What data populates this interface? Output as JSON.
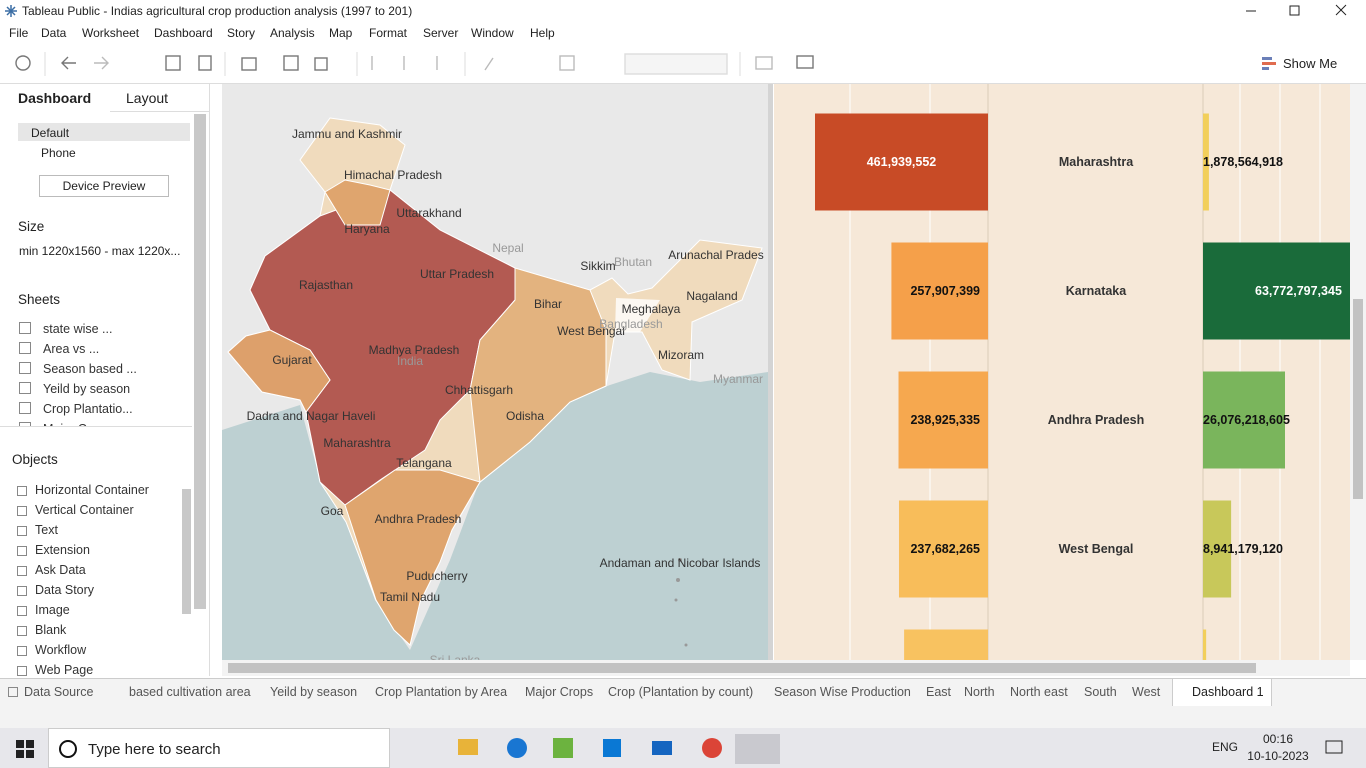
{
  "title_bar": {
    "title": "Tableau Public - Indias agricultural crop production analysis (1997 to 201)"
  },
  "menu": [
    "File",
    "Data",
    "Worksheet",
    "Dashboard",
    "Story",
    "Analysis",
    "Map",
    "Format",
    "Server",
    "Window",
    "Help"
  ],
  "toolbar": {
    "show_me": "Show Me"
  },
  "sidebar": {
    "tabs": [
      "Dashboard",
      "Layout"
    ],
    "devices": [
      "Default",
      "Phone"
    ],
    "device_preview": "Device Preview",
    "size_heading": "Size",
    "size_value": "min 1220x1560 - max 1220x...",
    "sheets_heading": "Sheets",
    "sheets": [
      "state wise ...",
      "Area vs ...",
      "Season based ...",
      "Yeild by season",
      "Crop Plantatio...",
      "Major Crops"
    ],
    "objects_heading": "Objects",
    "objects": [
      "Horizontal Container",
      "Vertical Container",
      "Text",
      "Extension",
      "Ask Data",
      "Data Story",
      "Image",
      "Blank",
      "Workflow",
      "Web Page"
    ]
  },
  "map": {
    "states": [
      "Jammu and Kashmir",
      "Himachal Pradesh",
      "Uttarakhand",
      "Haryana",
      "Sikkim",
      "Arunachal Prades",
      "Uttar Pradesh",
      "Rajasthan",
      "Bihar",
      "Nagaland",
      "Meghalaya",
      "West Bengal",
      "Madhya Pradesh",
      "Mizoram",
      "Gujarat",
      "Chhattisgarh",
      "Dadra and Nagar Haveli",
      "Odisha",
      "Maharashtra",
      "Telangana",
      "Goa",
      "Andhra Pradesh",
      "Andaman and Nicobar Islands",
      "Puducherry",
      "Tamil Nadu"
    ],
    "countries": [
      "Nepal",
      "Bhutan",
      "Bangladesh",
      "India",
      "Myanmar",
      "Sri Lanka"
    ]
  },
  "dashboard": {
    "rows": [
      {
        "state": "Maharashtra",
        "area": 461939552,
        "area_label": "461,939,552",
        "area_color": "#c84b26",
        "production": 1878564918,
        "production_label": "1,878,564,918",
        "production_color": "#f2cf5b"
      },
      {
        "state": "Karnataka",
        "area": 257907399,
        "area_label": "257,907,399",
        "area_color": "#f5a04a",
        "production": 63772797345,
        "production_label": "63,772,797,345",
        "production_color": "#1a6b3a"
      },
      {
        "state": "Andhra Pradesh",
        "area": 238925335,
        "area_label": "238,925,335",
        "area_color": "#f6a84f",
        "production": 26076218605,
        "production_label": "26,076,218,605",
        "production_color": "#7ab55c"
      },
      {
        "state": "West Bengal",
        "area": 237682265,
        "area_label": "237,682,265",
        "area_color": "#f8bd5a",
        "production": 8941179120,
        "production_label": "8,941,179,120",
        "production_color": "#c8c85a"
      },
      {
        "area": 224000000,
        "area_color": "#f8c260",
        "production": 1000000000,
        "production_color": "#f2cf5b"
      }
    ]
  },
  "tabs": [
    "Data Source",
    "based cultivation area",
    "Yeild by season",
    "Crop Plantation by Area",
    "Major Crops",
    "Crop (Plantation by count)",
    "Season Wise Production",
    "East",
    "North",
    "North east",
    "South",
    "West",
    "Dashboard 1"
  ],
  "taskbar": {
    "search": "Type here to search",
    "language": "ENG",
    "time": "00:16",
    "date": "10-10-2023"
  }
}
